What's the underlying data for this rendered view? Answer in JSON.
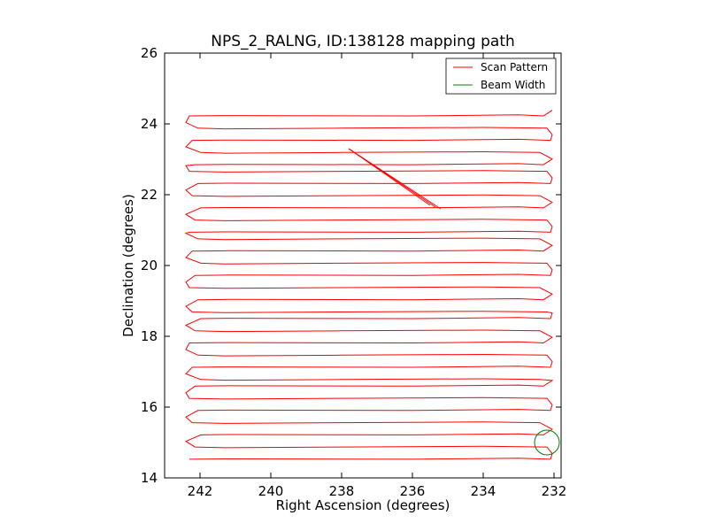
{
  "chart_data": {
    "type": "line",
    "title": "NPS_2_RALNG, ID:138128 mapping path",
    "xlabel": "Right Ascension (degrees)",
    "ylabel": "Declination (degrees)",
    "xlim": [
      243.0,
      231.8
    ],
    "ylim": [
      14,
      26
    ],
    "x_axis_reversed": true,
    "xticks": [
      242,
      240,
      238,
      236,
      234,
      232
    ],
    "xtick_labels": [
      "242",
      "240",
      "238",
      "236",
      "234",
      "232"
    ],
    "yticks": [
      14,
      16,
      18,
      20,
      22,
      24,
      26
    ],
    "ytick_labels": [
      "14",
      "16",
      "18",
      "20",
      "22",
      "24",
      "26"
    ],
    "grid": false,
    "legend_position": "top-right",
    "series": [
      {
        "name": "Scan Pattern",
        "color": "#ff0000",
        "kind": "raster-scan",
        "ra_min": 232.1,
        "ra_max": 242.3,
        "dec_start": 14.6,
        "dec_end": 24.5,
        "dec_step": 0.32,
        "diagonal_traverse": {
          "from": [
            237.8,
            23.3
          ],
          "to": [
            235.2,
            21.6
          ]
        }
      },
      {
        "name": "Beam Width",
        "color": "#008000",
        "kind": "circle",
        "center": [
          232.2,
          15.0
        ],
        "radius_deg": 0.35
      }
    ]
  }
}
